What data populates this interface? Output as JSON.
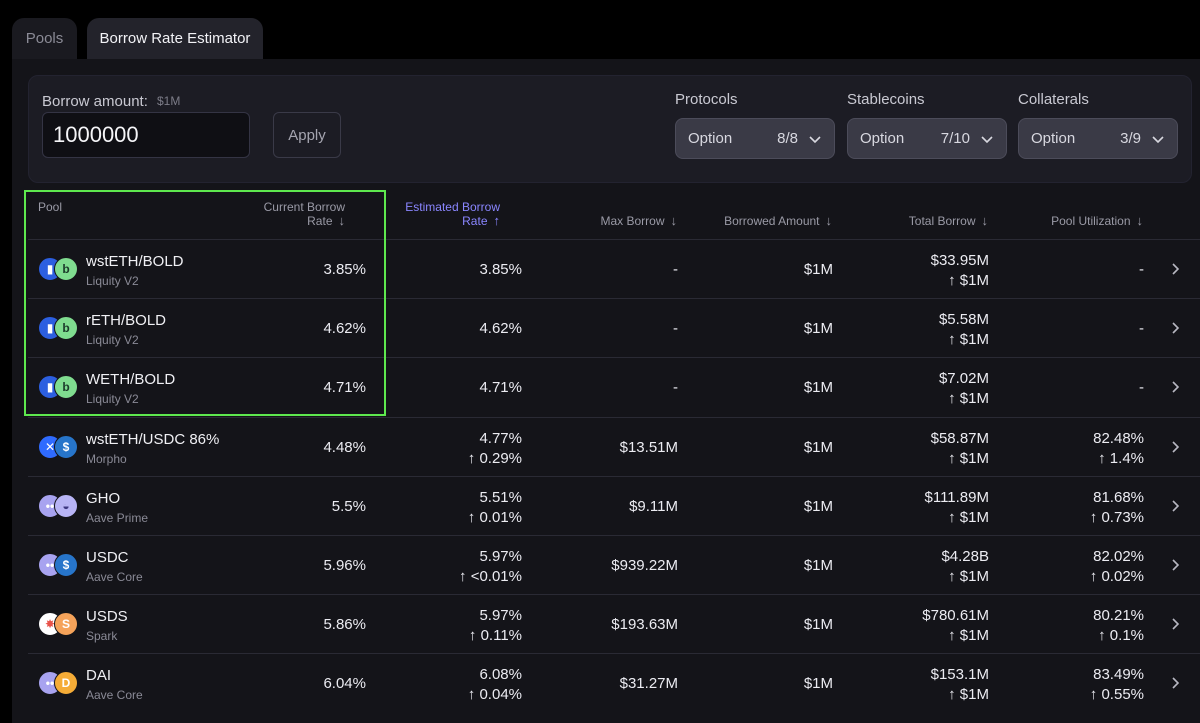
{
  "tabs": [
    {
      "label": "Pools"
    },
    {
      "label": "Borrow Rate Estimator"
    }
  ],
  "controls": {
    "borrow_label": "Borrow amount:",
    "borrow_hint": "$1M",
    "borrow_value": "1000000",
    "apply_label": "Apply",
    "filters": [
      {
        "label": "Protocols",
        "option": "Option",
        "count": "8/8"
      },
      {
        "label": "Stablecoins",
        "option": "Option",
        "count": "7/10"
      },
      {
        "label": "Collaterals",
        "option": "Option",
        "count": "3/9"
      }
    ]
  },
  "table": {
    "headers": {
      "pool": "Pool",
      "current_l1": "Current Borrow",
      "current_l2": "Rate",
      "estimated_l1": "Estimated Borrow",
      "estimated_l2": "Rate",
      "max_borrow": "Max Borrow",
      "borrowed_amount": "Borrowed Amount",
      "total_borrow": "Total Borrow",
      "utilization": "Pool Utilization"
    },
    "rows": [
      {
        "name": "wstETH/BOLD",
        "protocol": "Liquity V2",
        "current": "3.85%",
        "estimated": "3.85%",
        "est_delta": "",
        "max": "-",
        "borrowed": "$1M",
        "total": "$33.95M",
        "total_delta": "↑ $1M",
        "util": "-",
        "util_delta": "",
        "icon1": "liquity",
        "icon2": "bold"
      },
      {
        "name": "rETH/BOLD",
        "protocol": "Liquity V2",
        "current": "4.62%",
        "estimated": "4.62%",
        "est_delta": "",
        "max": "-",
        "borrowed": "$1M",
        "total": "$5.58M",
        "total_delta": "↑ $1M",
        "util": "-",
        "util_delta": "",
        "icon1": "liquity",
        "icon2": "bold"
      },
      {
        "name": "WETH/BOLD",
        "protocol": "Liquity V2",
        "current": "4.71%",
        "estimated": "4.71%",
        "est_delta": "",
        "max": "-",
        "borrowed": "$1M",
        "total": "$7.02M",
        "total_delta": "↑ $1M",
        "util": "-",
        "util_delta": "",
        "icon1": "liquity",
        "icon2": "bold"
      },
      {
        "name": "wstETH/USDC 86%",
        "protocol": "Morpho",
        "current": "4.48%",
        "estimated": "4.77%",
        "est_delta": "↑ 0.29%",
        "max": "$13.51M",
        "borrowed": "$1M",
        "total": "$58.87M",
        "total_delta": "↑ $1M",
        "util": "82.48%",
        "util_delta": "↑ 1.4%",
        "icon1": "morpho",
        "icon2": "usdc"
      },
      {
        "name": "GHO",
        "protocol": "Aave Prime",
        "current": "5.5%",
        "estimated": "5.51%",
        "est_delta": "↑ 0.01%",
        "max": "$9.11M",
        "borrowed": "$1M",
        "total": "$111.89M",
        "total_delta": "↑ $1M",
        "util": "81.68%",
        "util_delta": "↑ 0.73%",
        "icon1": "aave",
        "icon2": "gho"
      },
      {
        "name": "USDC",
        "protocol": "Aave Core",
        "current": "5.96%",
        "estimated": "5.97%",
        "est_delta": "↑ <0.01%",
        "max": "$939.22M",
        "borrowed": "$1M",
        "total": "$4.28B",
        "total_delta": "↑ $1M",
        "util": "82.02%",
        "util_delta": "↑ 0.02%",
        "icon1": "aave",
        "icon2": "usdc"
      },
      {
        "name": "USDS",
        "protocol": "Spark",
        "current": "5.86%",
        "estimated": "5.97%",
        "est_delta": "↑ 0.11%",
        "max": "$193.63M",
        "borrowed": "$1M",
        "total": "$780.61M",
        "total_delta": "↑ $1M",
        "util": "80.21%",
        "util_delta": "↑ 0.1%",
        "icon1": "spark",
        "icon2": "usds"
      },
      {
        "name": "DAI",
        "protocol": "Aave Core",
        "current": "6.04%",
        "estimated": "6.08%",
        "est_delta": "↑ 0.04%",
        "max": "$31.27M",
        "borrowed": "$1M",
        "total": "$153.1M",
        "total_delta": "↑ $1M",
        "util": "83.49%",
        "util_delta": "↑ 0.55%",
        "icon1": "aave",
        "icon2": "dai"
      }
    ]
  },
  "colors": {
    "accent": "#8a86ff",
    "positive": "#3ecf8e",
    "highlight": "#5ee84e"
  }
}
